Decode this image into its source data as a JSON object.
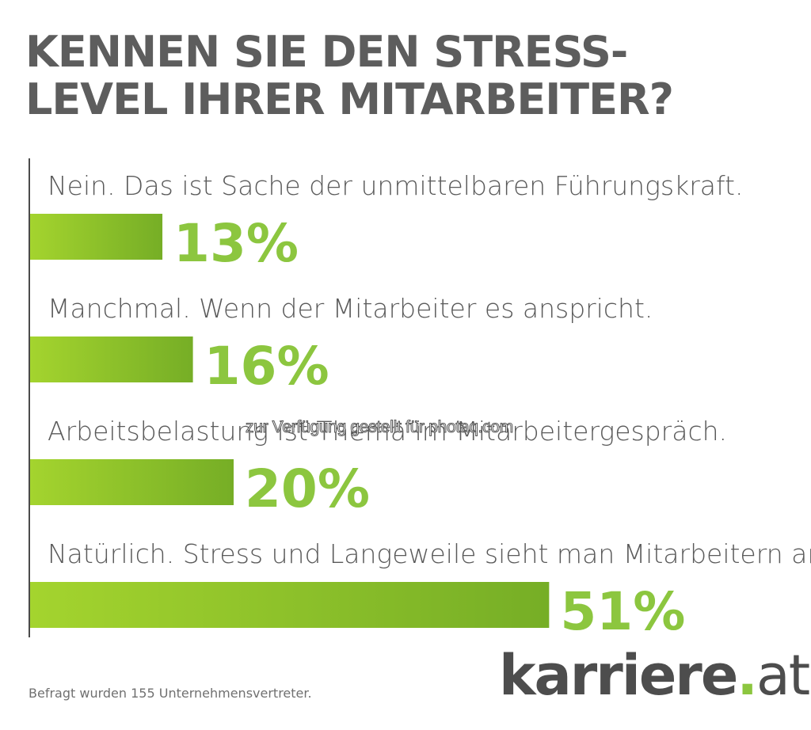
{
  "title": {
    "line1": "KENNEN SIE DEN STRESS-",
    "line2": "LEVEL IHRER MITARBEITER?"
  },
  "chart_data": {
    "type": "bar",
    "orientation": "horizontal",
    "title": "KENNEN SIE DEN STRESS-LEVEL IHRER MITARBEITER?",
    "categories": [
      "Nein. Das ist Sache der unmittelbaren Führungskraft.",
      "Manchmal. Wenn der Mitarbeiter es anspricht.",
      "Arbeitsbelastung ist Thema im Mitarbeitergespräch.",
      "Natürlich. Stress und Langeweile sieht man Mitarbeitern an."
    ],
    "values": [
      13,
      16,
      20,
      51
    ],
    "value_labels": [
      "13%",
      "16%",
      "20%",
      "51%"
    ],
    "unit": "%",
    "xlim": [
      0,
      100
    ],
    "grid": false,
    "legend": "none",
    "colors": {
      "bar_light": "#a4d42e",
      "bar_dark": "#76ae26",
      "value_text": "#8cc63f",
      "category_text": "#5a5a5a"
    }
  },
  "watermark": "zur Verfügung gestellt für photaq.com",
  "footnote": "Befragt wurden 155 Unternehmensvertreter.",
  "logo": {
    "main": "karriere",
    "dot": ".",
    "tld": "at"
  },
  "colors": {
    "title": "#5d5d5d",
    "accent": "#8cc63f",
    "axis": "#4a4a4a"
  }
}
